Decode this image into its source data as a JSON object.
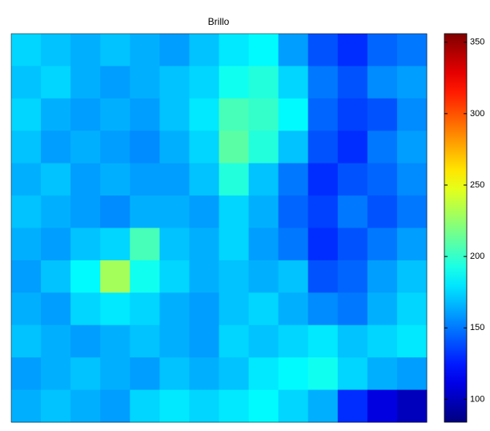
{
  "chart_data": {
    "type": "heatmap",
    "title": "Brillo",
    "colormap": "jet",
    "clim": [
      84,
      356
    ],
    "cticks": [
      100,
      150,
      200,
      250,
      300,
      350
    ],
    "z": [
      [
        175,
        170,
        165,
        170,
        165,
        160,
        170,
        180,
        185,
        160,
        140,
        130,
        145,
        150
      ],
      [
        170,
        175,
        165,
        160,
        165,
        170,
        175,
        190,
        195,
        175,
        150,
        140,
        155,
        160
      ],
      [
        175,
        165,
        160,
        165,
        160,
        170,
        180,
        205,
        200,
        185,
        145,
        135,
        140,
        155
      ],
      [
        170,
        160,
        165,
        160,
        155,
        165,
        175,
        210,
        195,
        170,
        140,
        130,
        150,
        160
      ],
      [
        165,
        170,
        160,
        165,
        160,
        160,
        170,
        195,
        170,
        150,
        130,
        140,
        145,
        155
      ],
      [
        170,
        165,
        160,
        155,
        165,
        165,
        160,
        175,
        165,
        145,
        135,
        150,
        140,
        150
      ],
      [
        165,
        160,
        170,
        175,
        205,
        170,
        165,
        175,
        160,
        150,
        130,
        140,
        150,
        160
      ],
      [
        160,
        170,
        185,
        230,
        190,
        175,
        165,
        170,
        165,
        170,
        140,
        145,
        160,
        170
      ],
      [
        165,
        160,
        175,
        180,
        175,
        165,
        160,
        170,
        175,
        165,
        155,
        150,
        165,
        175
      ],
      [
        170,
        165,
        160,
        165,
        170,
        165,
        160,
        175,
        170,
        175,
        180,
        170,
        175,
        180
      ],
      [
        160,
        165,
        170,
        165,
        160,
        170,
        165,
        170,
        180,
        185,
        190,
        175,
        165,
        160
      ],
      [
        165,
        170,
        165,
        160,
        175,
        180,
        175,
        180,
        185,
        175,
        165,
        130,
        110,
        100
      ]
    ]
  }
}
